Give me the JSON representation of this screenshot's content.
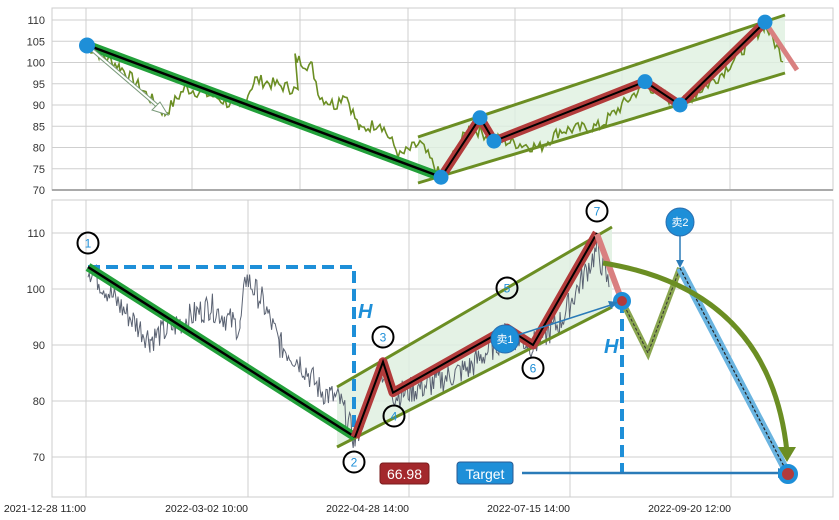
{
  "chart_data": [
    {
      "type": "line",
      "panel": "top",
      "ylim": [
        70,
        112
      ],
      "yticks": [
        "70",
        "75",
        "80",
        "85",
        "90",
        "95",
        "100",
        "105",
        "110"
      ],
      "grid": true,
      "pattern_points": [
        104,
        73,
        87,
        81.5,
        95.5,
        90,
        109.5,
        98
      ],
      "colors": {
        "price": "#6b8e23",
        "trend": "#22a03a",
        "zigzag": "#b23b3b",
        "point": "#1e8fd8",
        "channel": "#6b8e23"
      }
    },
    {
      "type": "line",
      "panel": "bottom",
      "ylim": [
        64,
        114
      ],
      "yticks": [
        "70",
        "80",
        "90",
        "100",
        "110"
      ],
      "xticks": [
        "2021-12-28 11:00",
        "2022-03-02 10:00",
        "2022-04-28 14:00",
        "2022-07-15 14:00",
        "2022-09-20 12:00"
      ],
      "grid": true,
      "pattern_points": [
        {
          "label": "1",
          "value": 104
        },
        {
          "label": "2",
          "value": 73.5
        },
        {
          "label": "3",
          "value": 87
        },
        {
          "label": "4",
          "value": 81.5
        },
        {
          "label": "5",
          "value": 93
        },
        {
          "label": "6",
          "value": 90
        },
        {
          "label": "7",
          "value": 110
        }
      ],
      "breakout_value": 98,
      "height_label": "H",
      "sell_labels": [
        "卖1",
        "卖2"
      ],
      "target_label": "Target",
      "target_value": "66.98",
      "colors": {
        "price": "#5a6272",
        "trend": "#22a03a",
        "zigzag": "#b23b3b",
        "channel": "#6b8e23",
        "projection": "#1e8fd8",
        "target_box": "#a3282c",
        "target_button": "#1e8fd8"
      }
    }
  ]
}
